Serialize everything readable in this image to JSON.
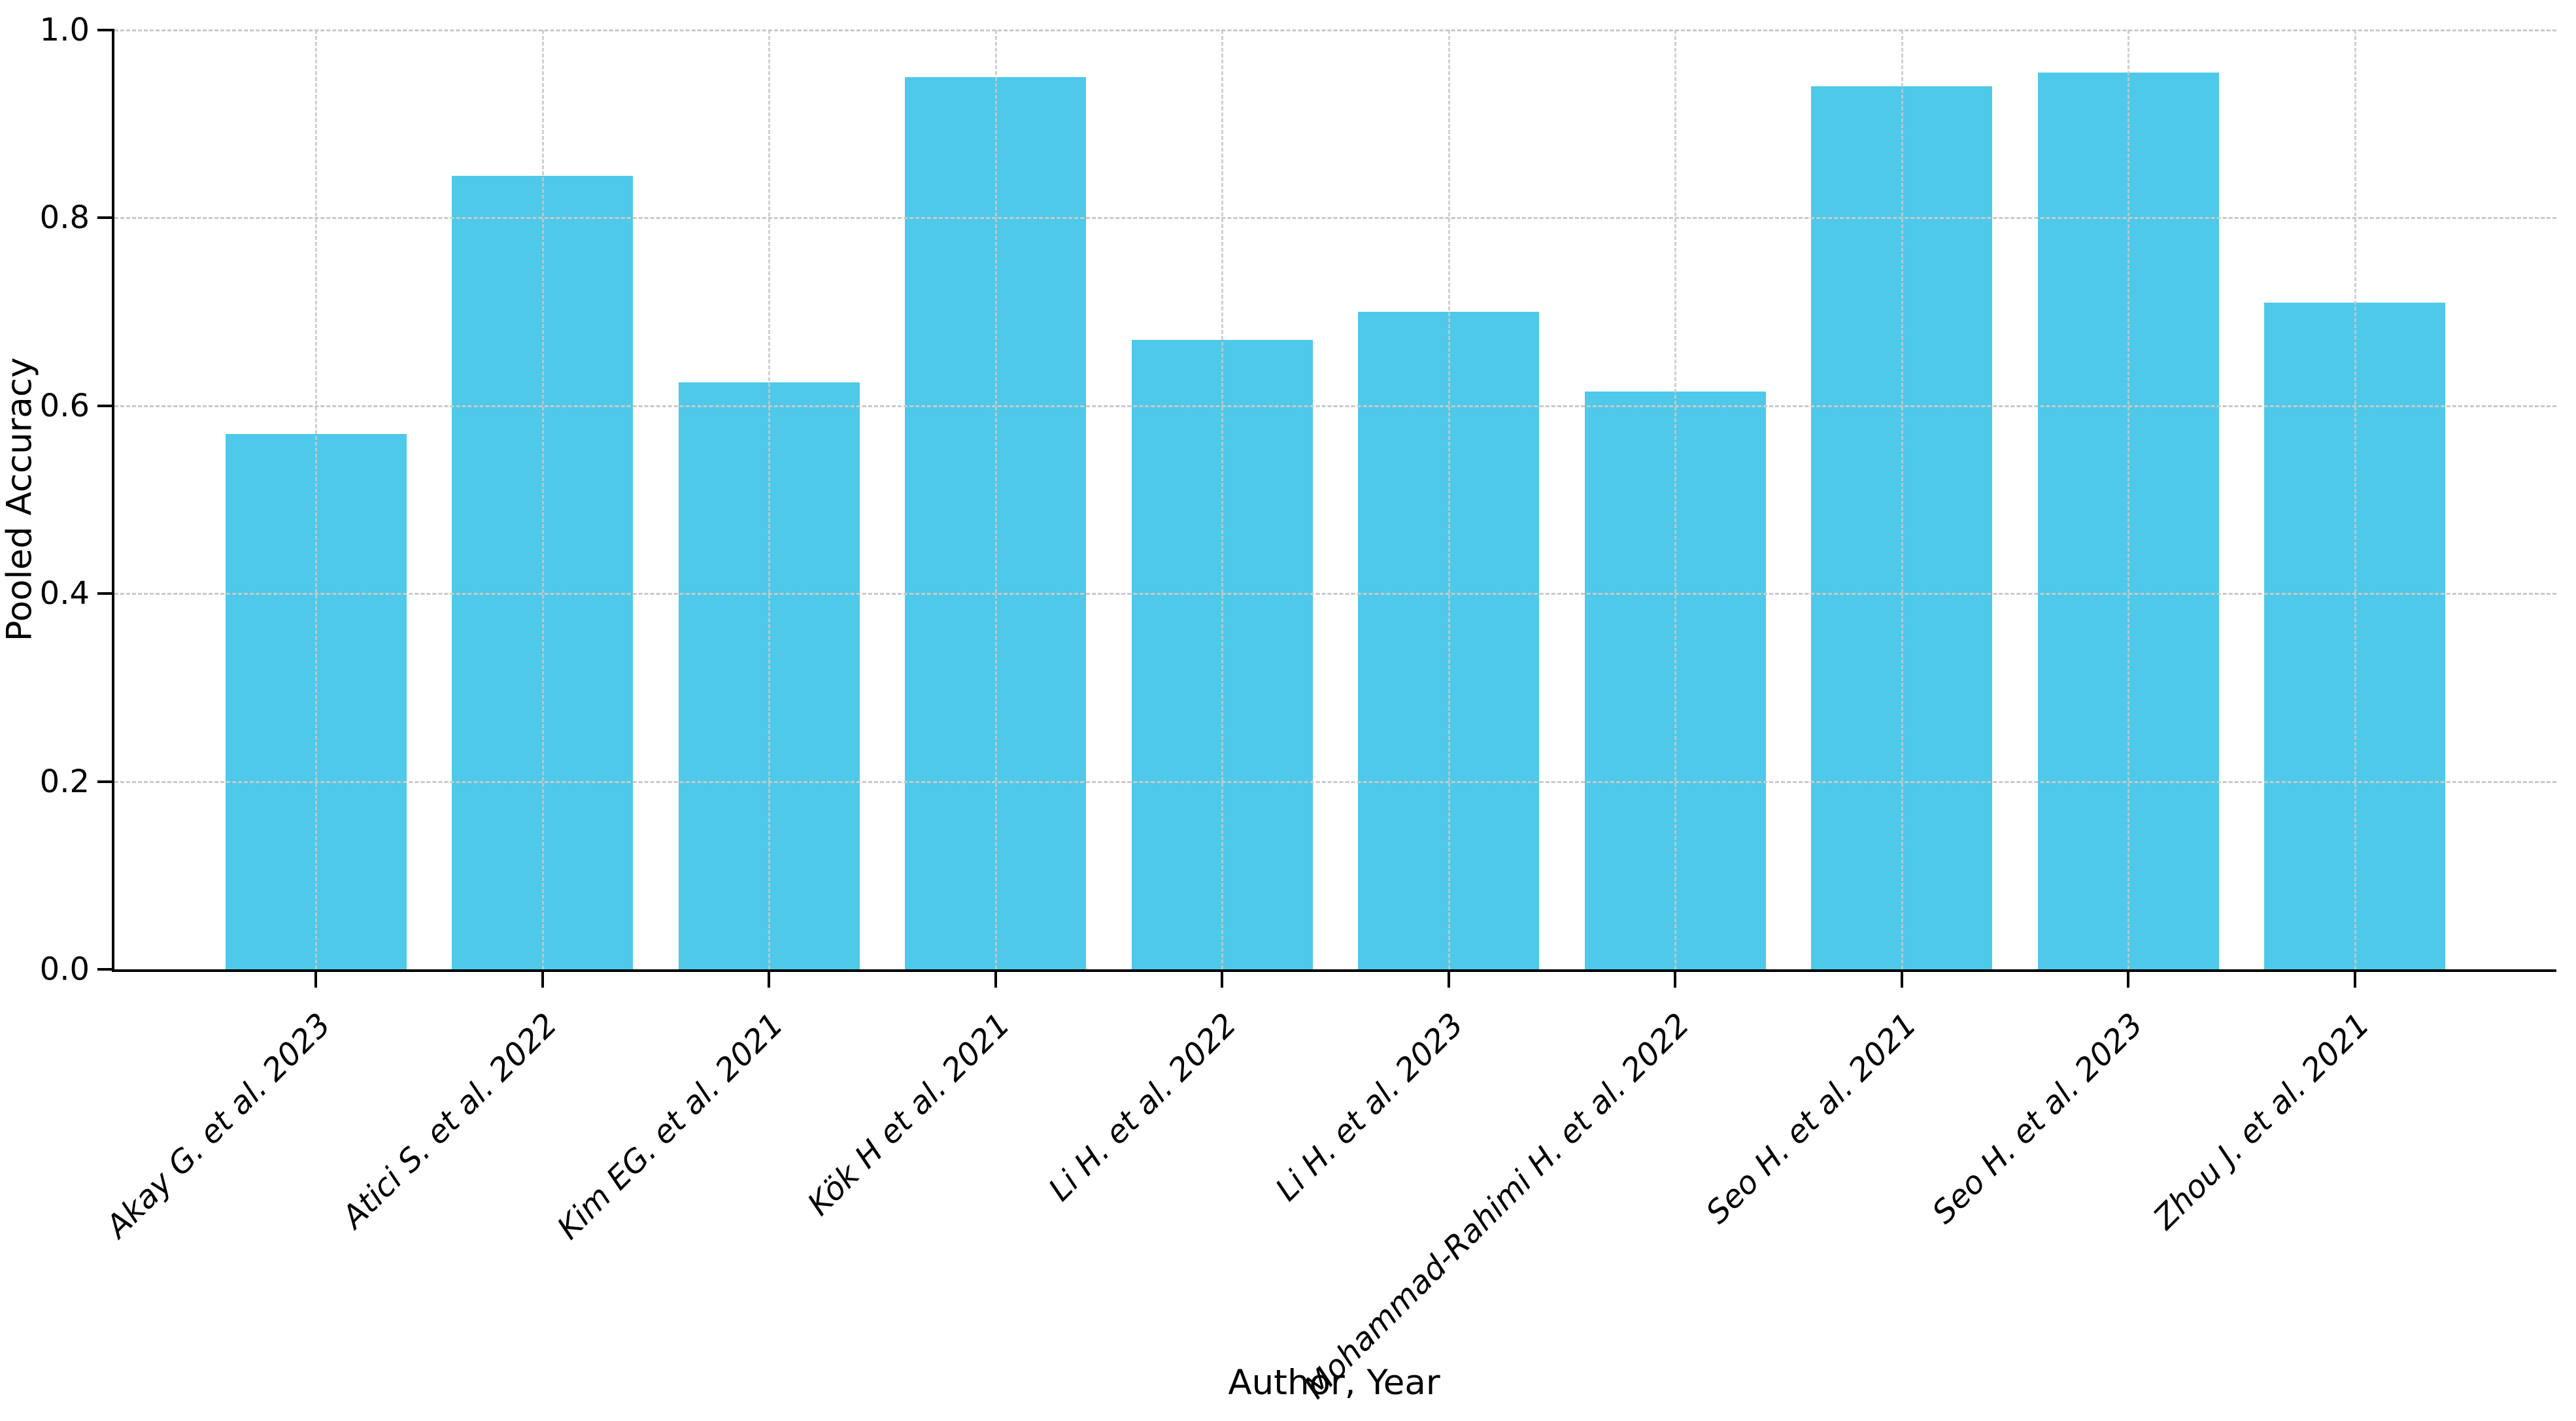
{
  "chart_data": {
    "type": "bar",
    "title": "",
    "xlabel": "Author, Year",
    "ylabel": "Pooled Accuracy",
    "categories": [
      "Akay G. et al. 2023",
      "Atici S. et al. 2022",
      "Kim EG. et al. 2021",
      "Kök H et al. 2021",
      "Li H. et al. 2022",
      "Li H. et al. 2023",
      "Mohammad-Rahimi H. et al. 2022",
      "Seo H. et al. 2021",
      "Seo H. et al. 2023",
      "Zhou J. et al. 2021"
    ],
    "values": [
      0.57,
      0.845,
      0.625,
      0.95,
      0.67,
      0.7,
      0.615,
      0.94,
      0.955,
      0.71
    ],
    "ylim": [
      0.0,
      1.0
    ],
    "yticks": [
      0.0,
      0.2,
      0.4,
      0.6,
      0.8,
      1.0
    ],
    "ytick_labels": [
      "0.0",
      "0.2",
      "0.4",
      "0.6",
      "0.8",
      "1.0"
    ],
    "x_tick_rotation_deg": 45,
    "grid": true,
    "legend": false,
    "bar_color": "#4ec9e9",
    "grid_color": "#c9c9c9",
    "axis_color": "#000000",
    "background_color": "#ffffff"
  }
}
